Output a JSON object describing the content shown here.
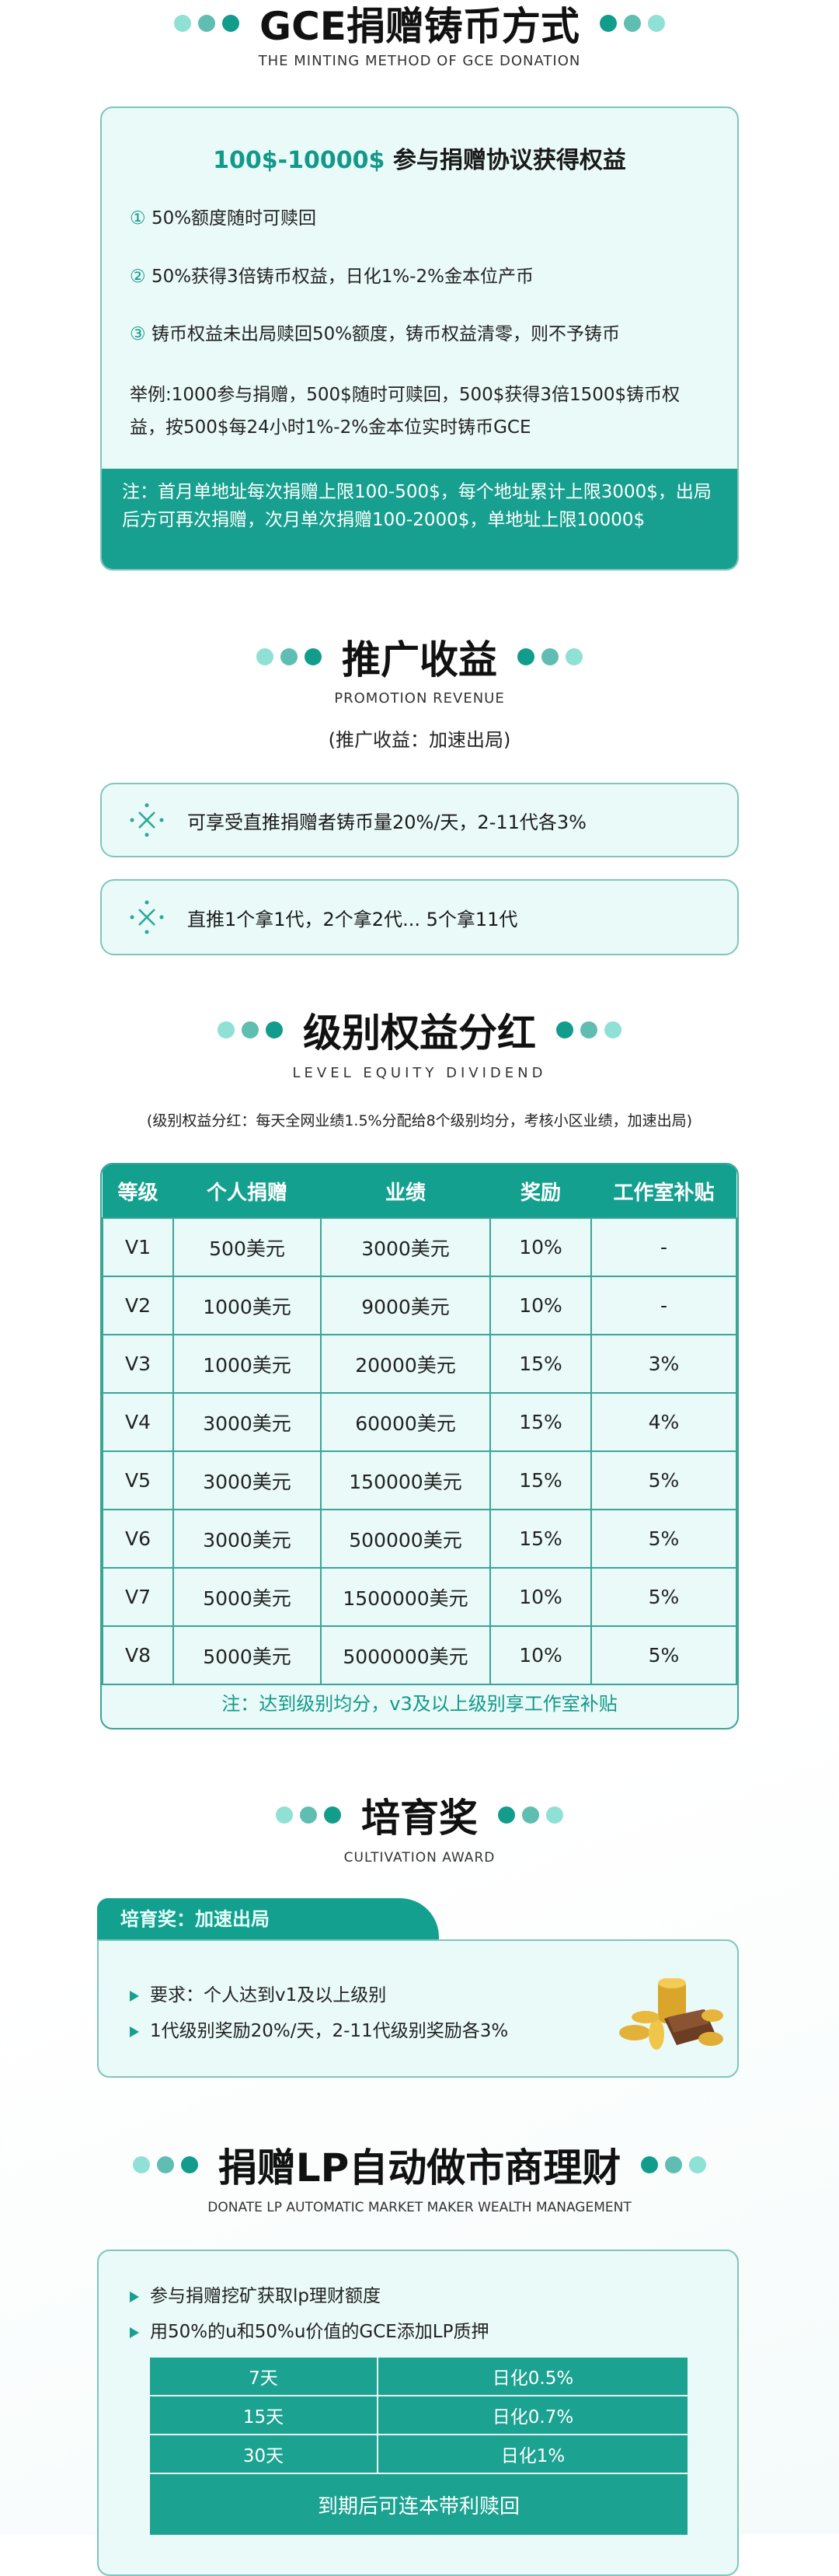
{
  "s1": {
    "title": "GCE捐赠铸币方式",
    "subtitle": "THE MINTING METHOD OF GCE DONATION",
    "heading_amount": "100$-10000$",
    "heading_text": " 参与捐赠协议获得权益",
    "items": [
      {
        "num": "①",
        "text": "50%额度随时可赎回"
      },
      {
        "num": "②",
        "text": "50%获得3倍铸币权益，日化1%-2%金本位产币"
      },
      {
        "num": "③",
        "text": "铸币权益未出局赎回50%额度，铸币权益清零，则不予铸币"
      }
    ],
    "example": "举例:1000参与捐赠，500$随时可赎回，500$获得3倍1500$铸币权益，按500$每24小时1%-2%金本位实时铸币GCE",
    "note": "注：首月单地址每次捐赠上限100-500$，每个地址累计上限3000$，出局后方可再次捐赠，次月单次捐赠100-2000$，单地址上限10000$"
  },
  "s2": {
    "title": "推广收益",
    "subtitle": "PROMOTION REVENUE",
    "paren": "(推广收益：加速出局)",
    "boxes": [
      "可享受直推捐赠者铸币量20%/天，2-11代各3%",
      "直推1个拿1代，2个拿2代... 5个拿11代"
    ],
    "icon": "sparkle-x-icon"
  },
  "s3": {
    "title": "级别权益分红",
    "subtitle": "LEVEL EQUITY DIVIDEND",
    "note": "(级别权益分红：每天全网业绩1.5%分配给8个级别均分，考核小区业绩，加速出局)",
    "headers": [
      "等级",
      "个人捐赠",
      "业绩",
      "奖励",
      "工作室补贴"
    ],
    "rows": [
      [
        "V1",
        "500美元",
        "3000美元",
        "10%",
        "-"
      ],
      [
        "V2",
        "1000美元",
        "9000美元",
        "10%",
        "-"
      ],
      [
        "V3",
        "1000美元",
        "20000美元",
        "15%",
        "3%"
      ],
      [
        "V4",
        "3000美元",
        "60000美元",
        "15%",
        "4%"
      ],
      [
        "V5",
        "3000美元",
        "150000美元",
        "15%",
        "5%"
      ],
      [
        "V6",
        "3000美元",
        "500000美元",
        "15%",
        "5%"
      ],
      [
        "V7",
        "5000美元",
        "1500000美元",
        "10%",
        "5%"
      ],
      [
        "V8",
        "5000美元",
        "5000000美元",
        "10%",
        "5%"
      ]
    ],
    "footer": "注：达到级别均分，v3及以上级别享工作室补贴"
  },
  "s4": {
    "title": "培育奖",
    "subtitle": "CULTIVATION AWARD",
    "tab": "培育奖：加速出局",
    "items": [
      "要求：个人达到v1及以上级别",
      "1代级别奖励20%/天，2-11代级别奖励各3%"
    ],
    "image": "gold-coins-wallet"
  },
  "s5": {
    "title": "捐赠LP自动做市商理财",
    "subtitle": "DONATE LP AUTOMATIC MARKET MAKER WEALTH MANAGEMENT",
    "items": [
      "参与捐赠挖矿获取lp理财额度",
      "用50%的u和50%u价值的GCE添加LP质押"
    ],
    "rows": [
      [
        "7天",
        "日化0.5%"
      ],
      [
        "15天",
        "日化0.7%"
      ],
      [
        "30天",
        "日化1%"
      ]
    ],
    "footer": "到期后可连本带利赎回"
  },
  "colors": {
    "accent": "#13a08f",
    "card_bg": "#e9faf8",
    "border": "#7fc6bb"
  }
}
